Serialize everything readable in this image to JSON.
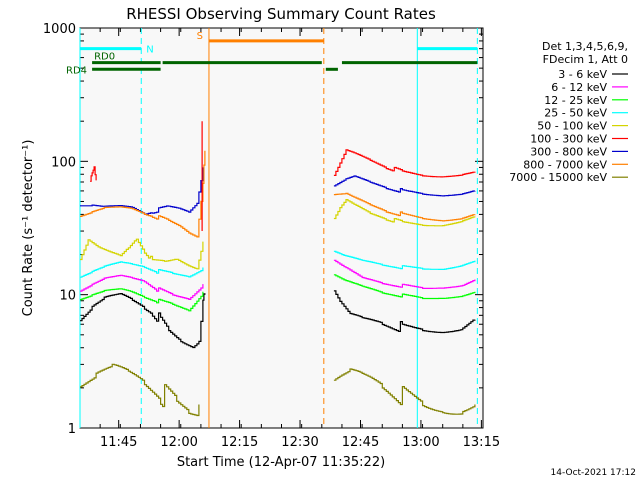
{
  "chart_data": {
    "type": "line",
    "title": "RHESSI Observing Summary Count Rates",
    "xlabel": "Start Time (12-Apr-07 11:35:22)",
    "ylabel": "Count Rate (s⁻¹ detector⁻¹)",
    "yscale": "log",
    "ylim": [
      1,
      1000
    ],
    "xlim": [
      0,
      100
    ],
    "x_unit": "minutes after 11:35:22",
    "x_ticks": [
      {
        "label": "11:45",
        "value": 9.6
      },
      {
        "label": "12:00",
        "value": 24.6
      },
      {
        "label": "12:15",
        "value": 39.6
      },
      {
        "label": "12:30",
        "value": 54.6
      },
      {
        "label": "12:45",
        "value": 69.6
      },
      {
        "label": "13:00",
        "value": 84.6
      },
      {
        "label": "13:15",
        "value": 99.6
      }
    ],
    "y_ticks": [
      {
        "label": "1",
        "value": 1
      },
      {
        "label": "10",
        "value": 10
      },
      {
        "label": "100",
        "value": 100
      },
      {
        "label": "1000",
        "value": 1000
      }
    ],
    "legend_header": [
      "Det 1,3,4,5,6,9,",
      "FDecim 1, Att 0"
    ],
    "series": [
      {
        "name": "3 - 6 keV",
        "color": "#000000",
        "points": [
          [
            0,
            7
          ],
          [
            3,
            8.2
          ],
          [
            6,
            9
          ],
          [
            10,
            9.3
          ],
          [
            13,
            8.5
          ],
          [
            16,
            7.8
          ],
          [
            18,
            7.4
          ],
          [
            20,
            6.5
          ],
          [
            22,
            5.5
          ],
          [
            25,
            4.8
          ],
          [
            28,
            4.4
          ],
          [
            29.5,
            4.8
          ],
          [
            30.5,
            9.5
          ],
          [
            31,
            10
          ]
        ],
        "points2": [
          [
            63,
            10.5
          ],
          [
            65,
            8
          ],
          [
            67,
            6.6
          ],
          [
            70,
            6.2
          ],
          [
            75,
            6
          ],
          [
            80,
            5.7
          ],
          [
            85,
            5.7
          ],
          [
            90,
            5.7
          ],
          [
            95,
            5.8
          ],
          [
            98,
            6.5
          ]
        ]
      },
      {
        "name": "6 - 12 keV",
        "color": "#ff00ff",
        "points": [
          [
            0,
            11
          ],
          [
            3,
            12
          ],
          [
            6,
            13
          ],
          [
            10,
            13.5
          ],
          [
            13,
            13
          ],
          [
            16,
            12.5
          ],
          [
            19,
            11
          ],
          [
            23,
            10
          ],
          [
            27,
            9.5
          ],
          [
            30.5,
            12
          ]
        ],
        "points2": [
          [
            63,
            18
          ],
          [
            66,
            15.5
          ],
          [
            70,
            13
          ],
          [
            75,
            12
          ],
          [
            80,
            11.6
          ],
          [
            85,
            11.3
          ],
          [
            90,
            11.6
          ],
          [
            95,
            12
          ],
          [
            98,
            13
          ]
        ]
      },
      {
        "name": "12 - 25 keV",
        "color": "#00ff00",
        "points": [
          [
            0,
            9.5
          ],
          [
            3,
            10
          ],
          [
            6,
            10.5
          ],
          [
            10,
            10.7
          ],
          [
            13,
            10.2
          ],
          [
            16,
            9.5
          ],
          [
            19,
            9
          ],
          [
            23,
            8.5
          ],
          [
            27,
            7.8
          ],
          [
            30.5,
            10.5
          ]
        ],
        "points2": [
          [
            63,
            14
          ],
          [
            66,
            12.4
          ],
          [
            70,
            11.2
          ],
          [
            75,
            10.2
          ],
          [
            80,
            9.8
          ],
          [
            85,
            9.5
          ],
          [
            90,
            9.7
          ],
          [
            95,
            10
          ],
          [
            98,
            10.5
          ]
        ]
      },
      {
        "name": "25 - 50 keV",
        "color": "#00ffff",
        "points": [
          [
            0,
            14
          ],
          [
            3,
            15
          ],
          [
            6,
            16
          ],
          [
            10,
            17
          ],
          [
            13,
            16.5
          ],
          [
            16,
            16
          ],
          [
            19,
            15
          ],
          [
            23,
            14.5
          ],
          [
            27,
            14
          ],
          [
            30.5,
            16
          ]
        ],
        "points2": [
          [
            63,
            21
          ],
          [
            66,
            19
          ],
          [
            70,
            17.5
          ],
          [
            75,
            16.5
          ],
          [
            80,
            16
          ],
          [
            85,
            15.8
          ],
          [
            90,
            16
          ],
          [
            95,
            17
          ],
          [
            98,
            18
          ]
        ]
      },
      {
        "name": "50 - 100 keV",
        "color": "#d4d400",
        "points": [
          [
            0,
            19
          ],
          [
            2,
            26
          ],
          [
            5,
            22
          ],
          [
            8,
            20
          ],
          [
            10,
            19
          ],
          [
            12,
            22
          ],
          [
            14,
            26
          ],
          [
            16,
            21
          ],
          [
            18,
            18
          ],
          [
            21,
            18
          ],
          [
            24,
            19
          ],
          [
            27,
            17
          ],
          [
            29,
            16
          ],
          [
            30.5,
            25
          ]
        ],
        "points2": [
          [
            63,
            37
          ],
          [
            64.5,
            44
          ],
          [
            66,
            50
          ],
          [
            68,
            46
          ],
          [
            72,
            40
          ],
          [
            76,
            37
          ],
          [
            80,
            35
          ],
          [
            85,
            34
          ],
          [
            90,
            34
          ],
          [
            95,
            36
          ],
          [
            98,
            38
          ]
        ]
      },
      {
        "name": "100 - 300 keV",
        "color": "#ff0000",
        "points": [
          [
            2.5,
            72
          ],
          [
            3,
            82
          ],
          [
            3.5,
            90
          ],
          [
            4,
            72
          ]
        ],
        "points2": [
          [
            63,
            78
          ],
          [
            64.5,
            95
          ],
          [
            66,
            118
          ],
          [
            68,
            112
          ],
          [
            72,
            100
          ],
          [
            76,
            90
          ],
          [
            80,
            84
          ],
          [
            85,
            80
          ],
          [
            90,
            79
          ],
          [
            95,
            80
          ],
          [
            98,
            82
          ]
        ]
      },
      {
        "name": "300 - 800 keV",
        "color": "#0000cc",
        "points": [
          [
            0,
            48
          ],
          [
            3,
            47
          ],
          [
            6,
            45
          ],
          [
            10,
            45
          ],
          [
            13,
            44
          ],
          [
            16,
            40
          ],
          [
            18,
            42
          ],
          [
            22,
            46
          ],
          [
            25,
            45
          ],
          [
            27,
            43
          ],
          [
            29,
            50
          ],
          [
            30.5,
            90
          ]
        ],
        "points2": [
          [
            63,
            65
          ],
          [
            66,
            72
          ],
          [
            68,
            75
          ],
          [
            72,
            68
          ],
          [
            76,
            63
          ],
          [
            80,
            60
          ],
          [
            85,
            58
          ],
          [
            90,
            57
          ],
          [
            95,
            58
          ],
          [
            98,
            60
          ]
        ]
      },
      {
        "name": "800 - 7000 keV",
        "color": "#ff8000",
        "points": [
          [
            0,
            40
          ],
          [
            3,
            42
          ],
          [
            6,
            44
          ],
          [
            10,
            44
          ],
          [
            13,
            43
          ],
          [
            16,
            40
          ],
          [
            18,
            39
          ],
          [
            22,
            36
          ],
          [
            25,
            33
          ],
          [
            27,
            30
          ],
          [
            29,
            28
          ],
          [
            30.5,
            70
          ],
          [
            31,
            120
          ]
        ],
        "points2": [
          [
            63,
            56
          ],
          [
            66,
            56
          ],
          [
            68,
            52
          ],
          [
            72,
            46
          ],
          [
            76,
            42
          ],
          [
            80,
            40
          ],
          [
            85,
            38
          ],
          [
            90,
            37
          ],
          [
            95,
            38
          ],
          [
            98,
            40
          ]
        ]
      },
      {
        "name": "7000 - 15000 keV",
        "color": "#808000",
        "points": [
          [
            0,
            2.5
          ],
          [
            4,
            2.5
          ],
          [
            8,
            2.5
          ],
          [
            12,
            2.2
          ],
          [
            16,
            2
          ],
          [
            20,
            1.8
          ],
          [
            24,
            1.6
          ],
          [
            27,
            1.5
          ],
          [
            29.5,
            1.5
          ]
        ],
        "points2": [
          [
            63,
            2.2
          ],
          [
            67,
            2.3
          ],
          [
            70,
            2.1
          ],
          [
            75,
            1.9
          ],
          [
            80,
            1.7
          ],
          [
            85,
            1.6
          ],
          [
            90,
            1.6
          ],
          [
            95,
            1.5
          ],
          [
            98,
            1.5
          ]
        ]
      }
    ],
    "ulevels": [
      {
        "values": [
          20,
          30,
          20,
          30,
          20,
          30,
          20
        ]
      },
      {
        "values": [
          50,
          300,
          500
        ]
      }
    ],
    "annotations": {
      "N": {
        "label": "N",
        "x_start": 0,
        "x_end": 15.2,
        "level": 700,
        "color": "#00ffff"
      },
      "N2": {
        "label": "",
        "x_start": 83.7,
        "x_end": 98.6,
        "level": 700,
        "color": "#00ffff"
      },
      "S": {
        "label": "S",
        "x_start": 32,
        "x_end": 60.5,
        "level": 800,
        "color": "#ff8000"
      },
      "RD0": {
        "label": "RD0",
        "x_start": 3,
        "x_end": 20,
        "level": 550,
        "color": "#006400"
      },
      "RD4": {
        "label": "RD4",
        "x_start": 3,
        "x_end": 20,
        "level": 490,
        "color": "#006400"
      },
      "green_bar2": {
        "x_start": 20.5,
        "x_end": 60,
        "level": 550,
        "color": "#006400"
      },
      "green_bar3": {
        "x_start": 61,
        "x_end": 64,
        "level": 490,
        "color": "#006400"
      },
      "green_bar4": {
        "x_start": 65,
        "x_end": 98.6,
        "level": 550,
        "color": "#006400"
      }
    },
    "vlines": [
      {
        "x": 0,
        "color": "#00ffff",
        "style": "solid"
      },
      {
        "x": 15.2,
        "color": "#00ffff",
        "style": "dashed"
      },
      {
        "x": 32,
        "color": "#ff8000",
        "style": "solid"
      },
      {
        "x": 60.5,
        "color": "#ff8000",
        "style": "dashed"
      },
      {
        "x": 83.7,
        "color": "#00ffff",
        "style": "solid"
      },
      {
        "x": 98.6,
        "color": "#00ffff",
        "style": "dashed"
      }
    ],
    "footer": "14-Oct-2021 17:12"
  }
}
